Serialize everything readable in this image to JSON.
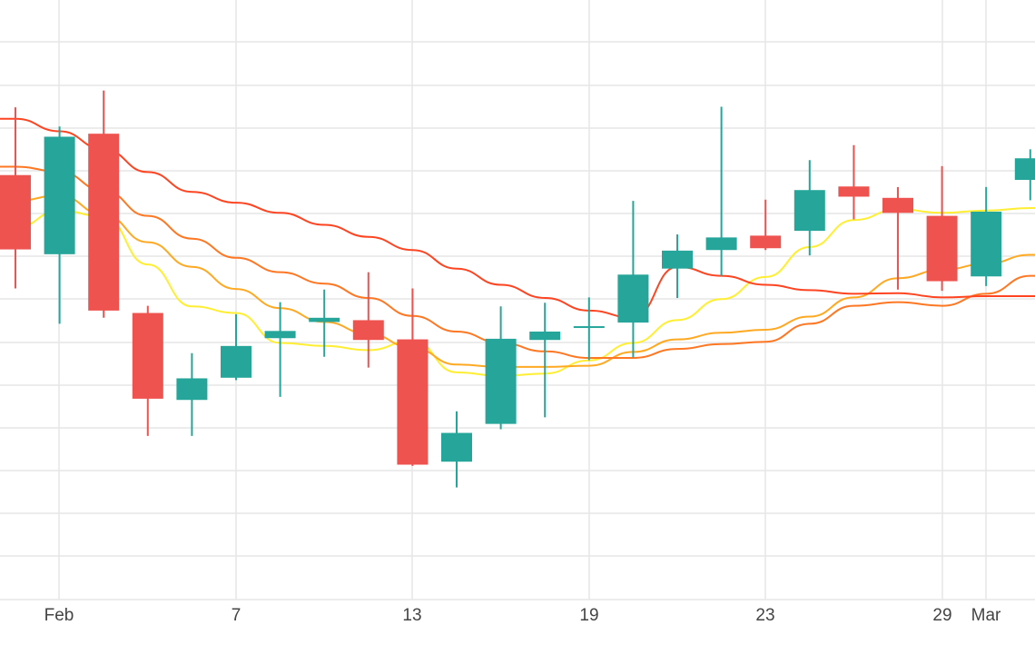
{
  "chart_data": {
    "type": "candlestick",
    "x_tick_labels": [
      "Feb",
      "7",
      "13",
      "19",
      "23",
      "29",
      "Mar"
    ],
    "grid": true,
    "ylim": [
      0,
      100
    ],
    "y_note": "no y-axis tick labels shown; values in relative units (0 = bottom of plot, 100 = top)",
    "candles": [
      {
        "open": 70.8,
        "high": 82.1,
        "low": 51.9,
        "close": 58.4
      },
      {
        "open": 57.6,
        "high": 78.9,
        "low": 46.0,
        "close": 77.2
      },
      {
        "open": 77.7,
        "high": 84.9,
        "low": 47.0,
        "close": 48.2
      },
      {
        "open": 47.8,
        "high": 49.0,
        "low": 27.3,
        "close": 33.5
      },
      {
        "open": 33.3,
        "high": 41.1,
        "low": 27.3,
        "close": 36.9
      },
      {
        "open": 37.0,
        "high": 47.6,
        "low": 36.6,
        "close": 42.3
      },
      {
        "open": 43.6,
        "high": 49.6,
        "low": 33.8,
        "close": 44.8
      },
      {
        "open": 46.3,
        "high": 51.7,
        "low": 40.5,
        "close": 47.0
      },
      {
        "open": 46.6,
        "high": 54.6,
        "low": 38.7,
        "close": 43.3
      },
      {
        "open": 43.4,
        "high": 51.9,
        "low": 22.3,
        "close": 22.5
      },
      {
        "open": 23.0,
        "high": 31.4,
        "low": 18.7,
        "close": 27.8
      },
      {
        "open": 29.3,
        "high": 48.9,
        "low": 28.4,
        "close": 43.5
      },
      {
        "open": 43.3,
        "high": 49.5,
        "low": 30.4,
        "close": 44.7
      },
      {
        "open": 45.3,
        "high": 50.4,
        "low": 39.9,
        "close": 45.6
      },
      {
        "open": 46.2,
        "high": 66.5,
        "low": 40.4,
        "close": 54.2
      },
      {
        "open": 55.2,
        "high": 60.9,
        "low": 50.3,
        "close": 58.2
      },
      {
        "open": 58.3,
        "high": 82.2,
        "low": 54.0,
        "close": 60.4
      },
      {
        "open": 60.7,
        "high": 66.7,
        "low": 58.3,
        "close": 58.6
      },
      {
        "open": 61.5,
        "high": 73.3,
        "low": 57.4,
        "close": 68.3
      },
      {
        "open": 68.9,
        "high": 75.8,
        "low": 63.4,
        "close": 67.2
      },
      {
        "open": 67.0,
        "high": 68.8,
        "low": 51.7,
        "close": 64.5
      },
      {
        "open": 64.0,
        "high": 72.3,
        "low": 51.5,
        "close": 53.1
      },
      {
        "open": 53.9,
        "high": 68.8,
        "low": 52.3,
        "close": 64.7
      },
      {
        "open": 70.0,
        "high": 75.1,
        "low": 66.6,
        "close": 73.6
      }
    ],
    "ma_lines": [
      {
        "color": "#ffee33",
        "values": [
          62,
          64.9,
          63.9,
          55.9,
          48.9,
          47.8,
          42.8,
          42.3,
          41.6,
          43.2,
          37.9,
          37.3,
          37.7,
          39.9,
          42.8,
          46.6,
          50.1,
          53.8,
          58.8,
          63.3,
          65.1,
          64.5,
          64.9,
          65.3
        ]
      },
      {
        "color": "#ffa922",
        "values": [
          66.5,
          67.4,
          64.2,
          59.6,
          55.5,
          51.8,
          48.6,
          46.3,
          44.3,
          42.0,
          39.2,
          38.8,
          38.8,
          39.0,
          41.3,
          43.4,
          44.5,
          45.0,
          47.2,
          50.4,
          53.6,
          55.0,
          56.0,
          57.5
        ]
      },
      {
        "color": "#ff7722",
        "values": [
          72.2,
          71.4,
          68.2,
          64.0,
          60.2,
          57.0,
          54.6,
          52.7,
          50.3,
          47.3,
          44.7,
          42.8,
          41.4,
          40.3,
          40.3,
          41.8,
          42.6,
          43.0,
          46.0,
          49.0,
          49.6,
          49.0,
          51.0,
          54.0
        ]
      },
      {
        "color": "#ff4422",
        "values": [
          80.2,
          78.1,
          75.1,
          71.3,
          68.0,
          66.2,
          64.5,
          62.5,
          60.5,
          58.3,
          55.2,
          52.5,
          50.3,
          48.2,
          47.0,
          55.5,
          54.0,
          52.5,
          51.6,
          51.0,
          51.1,
          50.4,
          50.6,
          50.6
        ]
      }
    ],
    "colors": {
      "up": "#26a69a",
      "down": "#ef5350",
      "grid": "#e6e6e6",
      "text": "#444444"
    }
  }
}
